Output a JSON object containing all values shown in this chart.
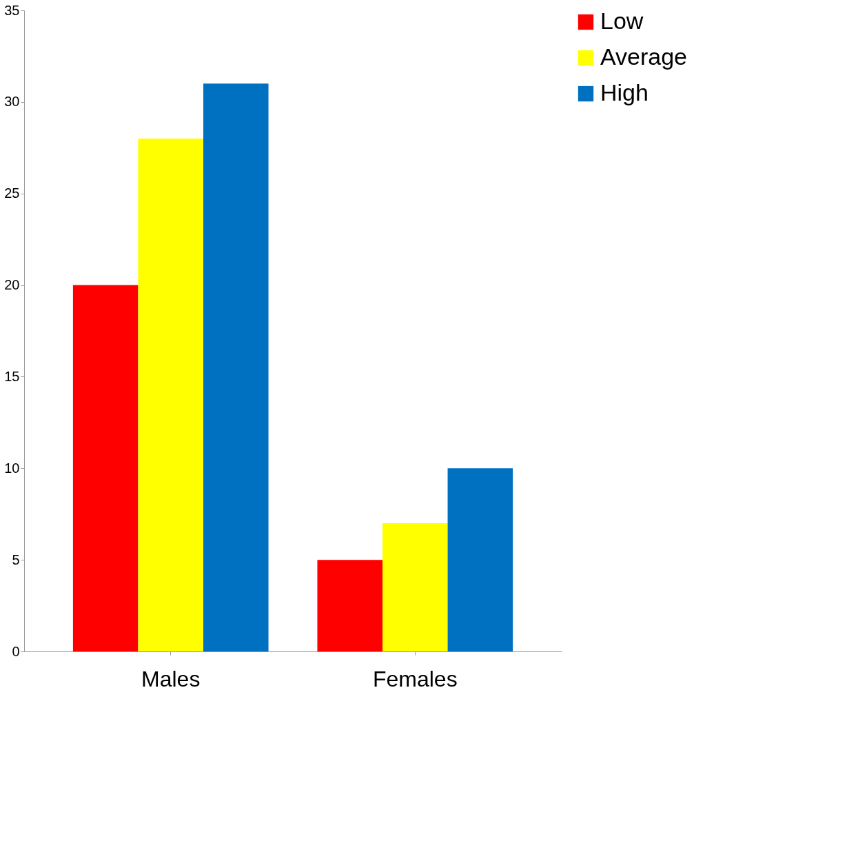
{
  "chart_data": {
    "type": "bar",
    "categories": [
      "Males",
      "Females"
    ],
    "series": [
      {
        "name": "Low",
        "color": "#ff0000",
        "values": [
          20,
          5
        ]
      },
      {
        "name": "Average",
        "color": "#ffff00",
        "values": [
          28,
          7
        ]
      },
      {
        "name": "High",
        "color": "#0070c0",
        "values": [
          31,
          10
        ]
      }
    ],
    "ylim": [
      0,
      35
    ],
    "yticks": [
      0,
      5,
      10,
      15,
      20,
      25,
      30,
      35
    ],
    "grid": false,
    "legend": "right"
  }
}
